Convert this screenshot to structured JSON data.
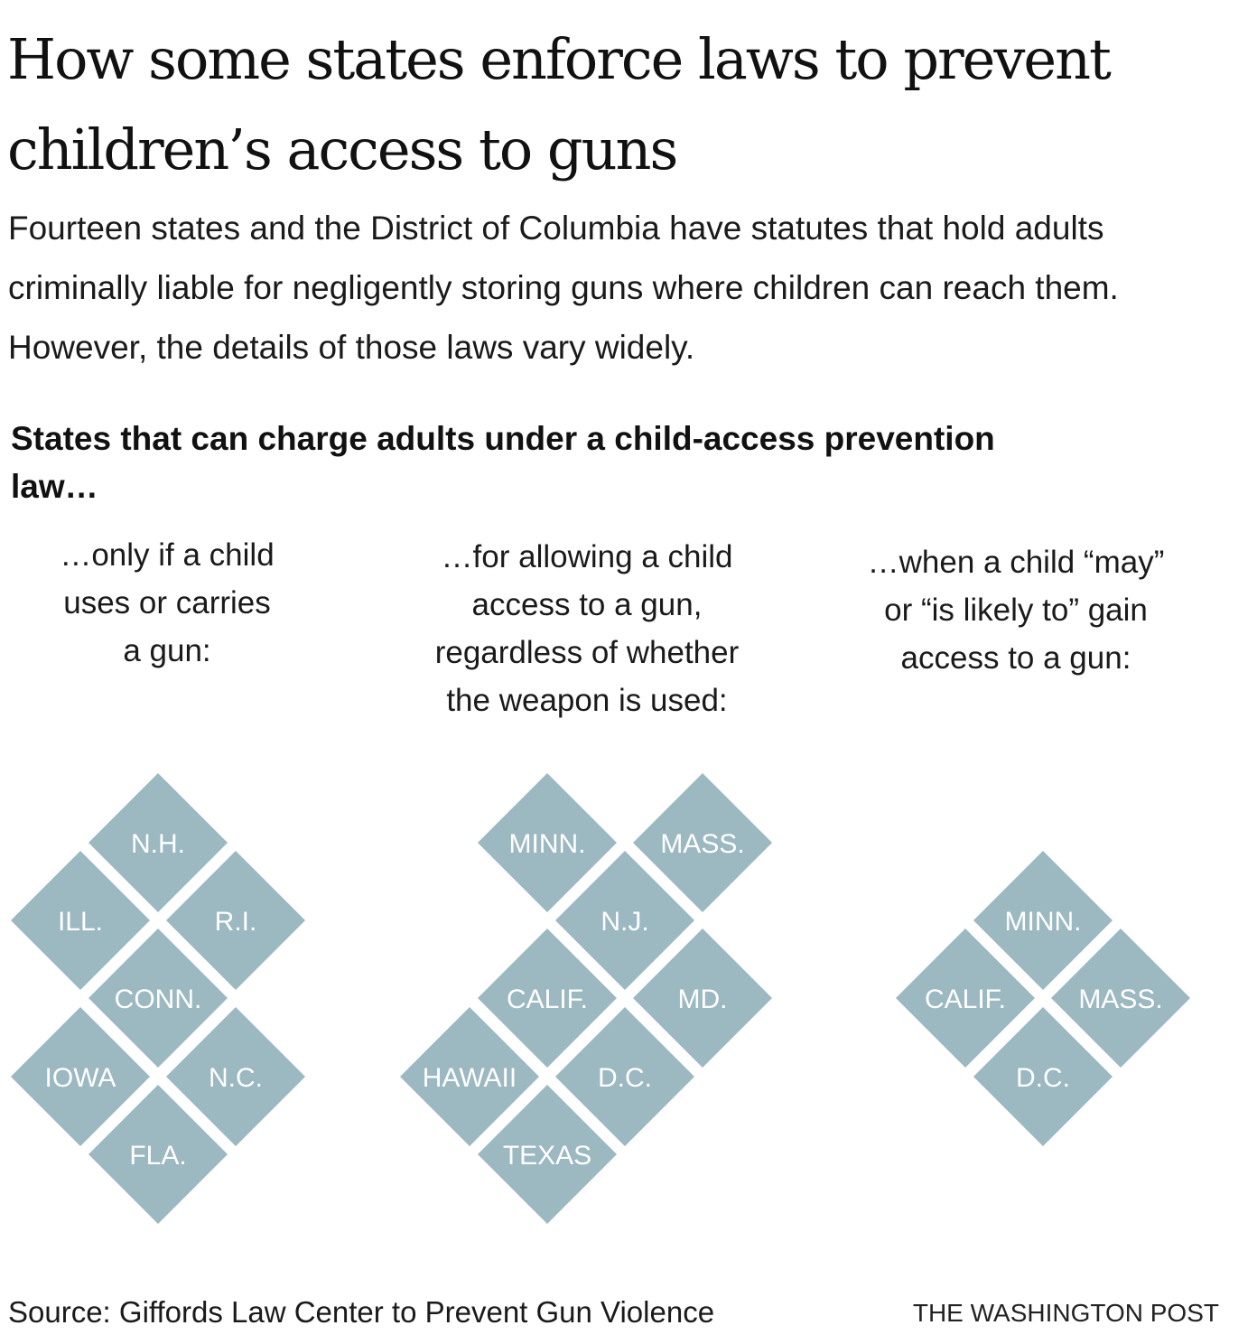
{
  "headline": {
    "line1": "How some states enforce laws to prevent",
    "line2": "children’s access to guns"
  },
  "dek": "Fourteen states and the District of Columbia have statutes that hold adults criminally liable for negligently storing guns where children can reach them. However, the details of those laws vary widely.",
  "subhead": "States that can charge adults under a child-access prevention law…",
  "tile_color": "#9cb8c1",
  "tile_text_color": "#ffffff",
  "groups": [
    {
      "heading_lines": [
        "…only if a child",
        "uses or carries",
        "a gun:"
      ],
      "states": [
        "N.H.",
        "ILL.",
        "R.I.",
        "CONN.",
        "IOWA",
        "N.C.",
        "FLA."
      ]
    },
    {
      "heading_lines": [
        "…for allowing a child",
        "access to a gun,",
        "regardless of whether",
        "the weapon is used:"
      ],
      "states": [
        "MINN.",
        "MASS.",
        "N.J.",
        "CALIF.",
        "MD.",
        "HAWAII",
        "D.C.",
        "TEXAS"
      ]
    },
    {
      "heading_lines": [
        "…when a child “may”",
        "or “is likely to” gain",
        "access to a gun:"
      ],
      "states": [
        "MINN.",
        "CALIF.",
        "MASS.",
        "D.C."
      ]
    }
  ],
  "source": "Source: Giffords Law Center to Prevent Gun Violence",
  "credit": "THE WASHINGTON POST"
}
